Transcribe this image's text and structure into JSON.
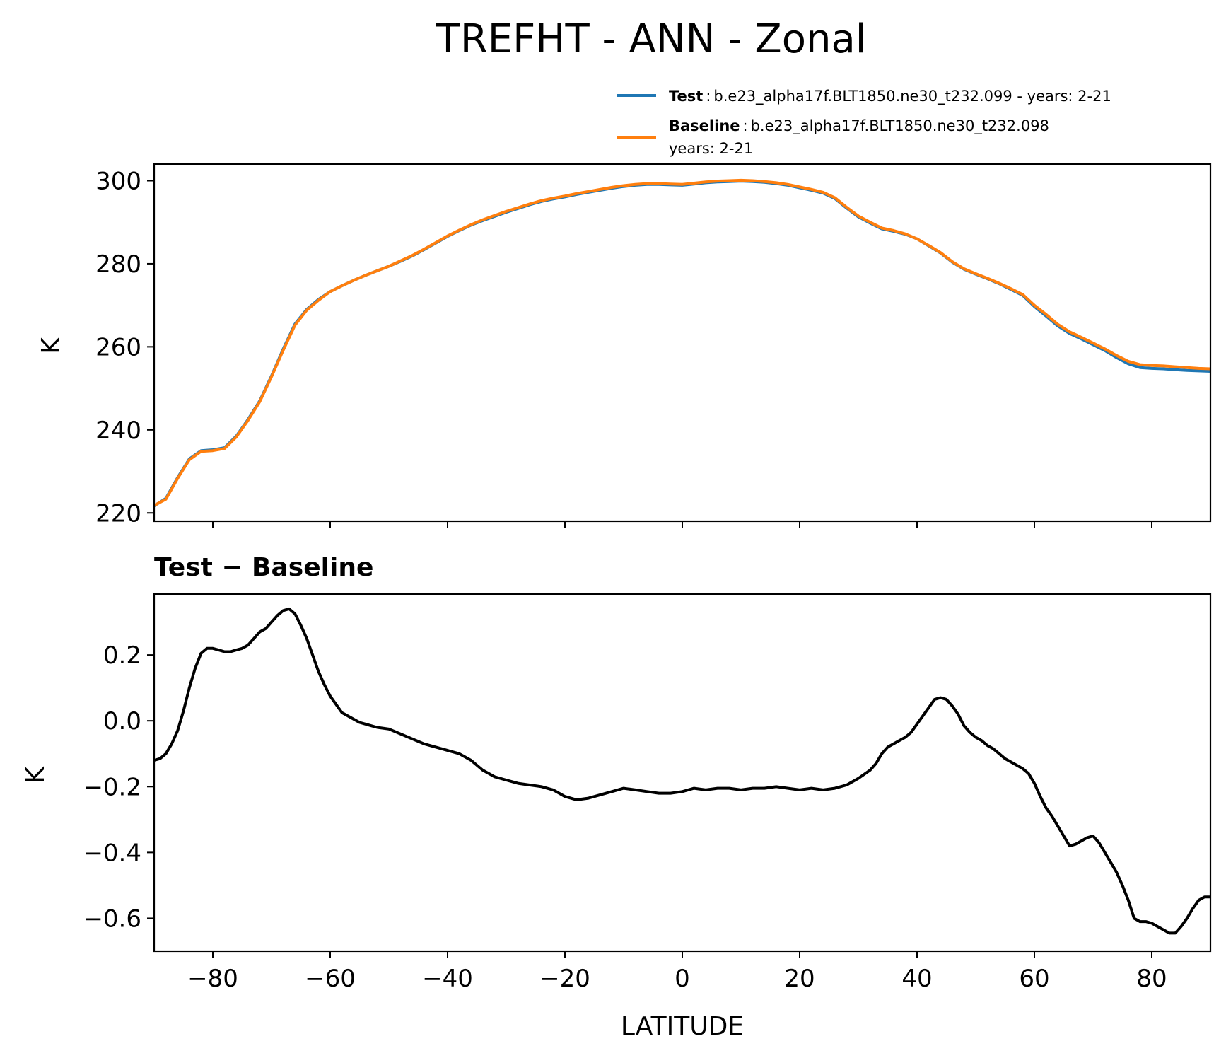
{
  "chart_data": [
    {
      "type": "line",
      "title": "TREFHT - ANN - Zonal",
      "xlabel": "",
      "ylabel": "K",
      "xlim": [
        -90,
        90
      ],
      "ylim": [
        218,
        304
      ],
      "yticks": [
        220,
        240,
        260,
        280,
        300
      ],
      "xticks": [
        -80,
        -60,
        -40,
        -20,
        0,
        20,
        40,
        60,
        80
      ],
      "legend": {
        "position": "top-right, above axes",
        "entries": [
          {
            "name": "Test",
            "sep": ":",
            "desc": "b.e23_alpha17f.BLT1850.ne30_t232.099 - years: 2-21",
            "desc2": "",
            "color": "#1f77b4"
          },
          {
            "name": "Baseline",
            "sep": ":",
            "desc": "b.e23_alpha17f.BLT1850.ne30_t232.098",
            "desc2": "years: 2-21",
            "color": "#ff7f0e"
          }
        ]
      },
      "x": [
        -90,
        -88,
        -86,
        -84,
        -82,
        -80,
        -78,
        -76,
        -74,
        -72,
        -70,
        -68,
        -66,
        -64,
        -62,
        -60,
        -58,
        -56,
        -54,
        -52,
        -50,
        -48,
        -46,
        -44,
        -42,
        -40,
        -38,
        -36,
        -34,
        -32,
        -30,
        -28,
        -26,
        -24,
        -22,
        -20,
        -18,
        -16,
        -14,
        -12,
        -10,
        -8,
        -6,
        -4,
        -2,
        0,
        2,
        4,
        6,
        8,
        10,
        12,
        14,
        16,
        18,
        20,
        22,
        24,
        26,
        28,
        30,
        32,
        34,
        36,
        38,
        40,
        42,
        44,
        46,
        48,
        50,
        52,
        54,
        56,
        58,
        60,
        62,
        64,
        66,
        68,
        70,
        72,
        74,
        76,
        78,
        80,
        82,
        84,
        86,
        88,
        90
      ],
      "series": [
        {
          "name": "Test",
          "color": "#1f77b4",
          "values": [
            221.7,
            223.5,
            228.5,
            233.0,
            235.0,
            235.2,
            235.7,
            238.5,
            242.5,
            247.0,
            253.0,
            259.5,
            265.5,
            269.0,
            271.4,
            273.3,
            274.7,
            276.0,
            277.2,
            278.3,
            279.4,
            280.6,
            281.9,
            283.4,
            285.0,
            286.6,
            288.0,
            289.3,
            290.4,
            291.4,
            292.4,
            293.3,
            294.2,
            295.0,
            295.6,
            296.1,
            296.7,
            297.2,
            297.7,
            298.2,
            298.6,
            298.9,
            299.1,
            299.1,
            299.0,
            298.9,
            299.2,
            299.5,
            299.7,
            299.8,
            299.9,
            299.8,
            299.6,
            299.3,
            298.9,
            298.3,
            297.7,
            297.0,
            295.7,
            293.4,
            291.3,
            289.8,
            288.4,
            287.8,
            287.1,
            286.0,
            284.3,
            282.6,
            280.4,
            278.7,
            277.5,
            276.4,
            275.2,
            273.8,
            272.4,
            269.7,
            267.4,
            265.0,
            263.2,
            261.9,
            260.5,
            259.1,
            257.4,
            255.9,
            255.0,
            254.8,
            254.7,
            254.5,
            254.3,
            254.2,
            254.1
          ]
        },
        {
          "name": "Baseline",
          "color": "#ff7f0e",
          "values": [
            221.8,
            223.3,
            228.3,
            232.8,
            234.8,
            235.0,
            235.5,
            238.3,
            242.3,
            246.8,
            252.8,
            259.2,
            265.2,
            268.8,
            271.2,
            273.3,
            274.7,
            276.0,
            277.2,
            278.3,
            279.4,
            280.7,
            282.0,
            283.5,
            285.1,
            286.7,
            288.1,
            289.4,
            290.6,
            291.6,
            292.6,
            293.5,
            294.4,
            295.2,
            295.8,
            296.3,
            296.9,
            297.4,
            297.9,
            298.4,
            298.8,
            299.1,
            299.3,
            299.3,
            299.2,
            299.1,
            299.4,
            299.7,
            299.9,
            300.0,
            300.1,
            300.0,
            299.8,
            299.5,
            299.1,
            298.5,
            297.9,
            297.2,
            295.9,
            293.6,
            291.5,
            290.0,
            288.6,
            288.0,
            287.2,
            286.0,
            284.4,
            282.7,
            280.5,
            278.8,
            277.6,
            276.5,
            275.3,
            274.0,
            272.6,
            270.0,
            267.8,
            265.4,
            263.6,
            262.3,
            260.9,
            259.5,
            257.9,
            256.5,
            255.7,
            255.5,
            255.4,
            255.2,
            255.0,
            254.8,
            254.7
          ]
        }
      ]
    },
    {
      "type": "line",
      "title": "Test − Baseline",
      "xlabel": "LATITUDE",
      "ylabel": "K",
      "xlim": [
        -90,
        90
      ],
      "ylim": [
        -0.7,
        0.385
      ],
      "yticks": [
        -0.6,
        -0.4,
        -0.2,
        0.0,
        0.2
      ],
      "ytick_labels": [
        "−0.6",
        "−0.4",
        "−0.2",
        "0.0",
        "0.2"
      ],
      "xticks": [
        -80,
        -60,
        -40,
        -20,
        0,
        20,
        40,
        60,
        80
      ],
      "xtick_labels": [
        "−80",
        "−60",
        "−40",
        "−20",
        "0",
        "20",
        "40",
        "60",
        "80"
      ],
      "series": [
        {
          "name": "Test − Baseline",
          "color": "#000000",
          "x": [
            -90,
            -89,
            -88,
            -87,
            -86,
            -85,
            -84,
            -83,
            -82,
            -81,
            -80,
            -79,
            -78,
            -77,
            -76,
            -75,
            -74,
            -73,
            -72,
            -71,
            -70,
            -69,
            -68,
            -67,
            -66,
            -65,
            -64,
            -63,
            -62,
            -61,
            -60,
            -59,
            -58,
            -57,
            -56,
            -55,
            -54,
            -53,
            -52,
            -50,
            -48,
            -46,
            -44,
            -42,
            -40,
            -38,
            -36,
            -34,
            -32,
            -30,
            -28,
            -26,
            -24,
            -22,
            -20,
            -18,
            -16,
            -14,
            -12,
            -10,
            -8,
            -6,
            -4,
            -2,
            0,
            2,
            4,
            6,
            8,
            10,
            12,
            14,
            16,
            18,
            20,
            22,
            24,
            26,
            28,
            30,
            32,
            33,
            34,
            35,
            36,
            37,
            38,
            39,
            40,
            41,
            42,
            43,
            44,
            45,
            46,
            47,
            48,
            49,
            50,
            51,
            52,
            53,
            54,
            55,
            56,
            57,
            58,
            59,
            60,
            61,
            62,
            63,
            64,
            65,
            66,
            67,
            68,
            69,
            70,
            71,
            72,
            73,
            74,
            75,
            76,
            77,
            78,
            79,
            80,
            81,
            82,
            83,
            84,
            85,
            86,
            87,
            88,
            89,
            90
          ],
          "values": [
            -0.12,
            -0.115,
            -0.1,
            -0.07,
            -0.03,
            0.03,
            0.1,
            0.16,
            0.205,
            0.22,
            0.22,
            0.215,
            0.21,
            0.21,
            0.215,
            0.22,
            0.23,
            0.25,
            0.27,
            0.28,
            0.3,
            0.32,
            0.335,
            0.34,
            0.325,
            0.29,
            0.25,
            0.2,
            0.15,
            0.11,
            0.075,
            0.05,
            0.025,
            0.015,
            0.005,
            -0.005,
            -0.01,
            -0.015,
            -0.02,
            -0.025,
            -0.04,
            -0.055,
            -0.07,
            -0.08,
            -0.09,
            -0.1,
            -0.12,
            -0.15,
            -0.17,
            -0.18,
            -0.19,
            -0.195,
            -0.2,
            -0.21,
            -0.23,
            -0.24,
            -0.235,
            -0.225,
            -0.215,
            -0.205,
            -0.21,
            -0.215,
            -0.22,
            -0.22,
            -0.215,
            -0.205,
            -0.21,
            -0.205,
            -0.205,
            -0.21,
            -0.205,
            -0.205,
            -0.2,
            -0.205,
            -0.21,
            -0.205,
            -0.21,
            -0.205,
            -0.195,
            -0.175,
            -0.15,
            -0.13,
            -0.1,
            -0.08,
            -0.07,
            -0.06,
            -0.05,
            -0.035,
            -0.01,
            0.015,
            0.04,
            0.065,
            0.07,
            0.065,
            0.045,
            0.02,
            -0.015,
            -0.035,
            -0.05,
            -0.06,
            -0.075,
            -0.085,
            -0.1,
            -0.115,
            -0.125,
            -0.135,
            -0.145,
            -0.16,
            -0.19,
            -0.23,
            -0.265,
            -0.29,
            -0.32,
            -0.35,
            -0.38,
            -0.375,
            -0.365,
            -0.355,
            -0.35,
            -0.37,
            -0.4,
            -0.43,
            -0.46,
            -0.5,
            -0.545,
            -0.6,
            -0.61,
            -0.61,
            -0.615,
            -0.625,
            -0.635,
            -0.645,
            -0.645,
            -0.625,
            -0.6,
            -0.57,
            -0.545,
            -0.535,
            -0.535
          ]
        }
      ]
    }
  ]
}
